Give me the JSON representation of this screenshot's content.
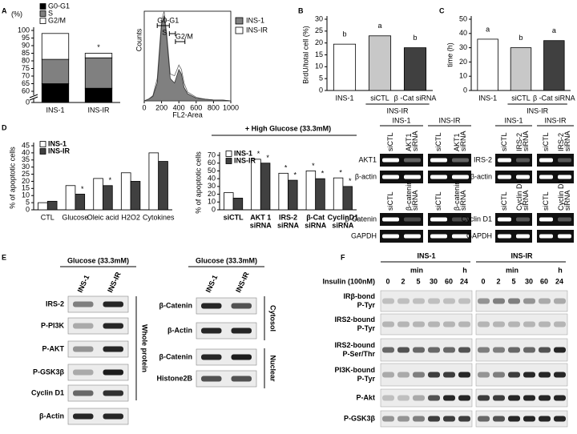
{
  "panel_labels": [
    "A",
    "B",
    "C",
    "D",
    "E",
    "F"
  ],
  "chart_data": [
    {
      "type": "bar",
      "stacked": true,
      "y_label": "(%)",
      "y_label_position": "top",
      "legend": "above",
      "categories": [
        "INS-1",
        "INS-IR"
      ],
      "series": [
        {
          "name": "G0-G1",
          "color": "#000000",
          "values": [
            65,
            62
          ]
        },
        {
          "name": "S",
          "color": "#808080",
          "values": [
            16,
            20
          ]
        },
        {
          "name": "G2/M",
          "color": "#ffffff",
          "values": [
            17,
            3
          ]
        }
      ],
      "markers": [
        null,
        "*"
      ],
      "ylim": [
        0,
        100
      ],
      "axis_break": [
        0,
        60
      ],
      "yticks": [
        0,
        60,
        65,
        70,
        75,
        80,
        85,
        90,
        95,
        100
      ]
    },
    {
      "type": "area",
      "x_label": "FL2-Area",
      "y_label": "Counts",
      "legend": "right",
      "xlim": [
        0,
        1000
      ],
      "xticks": [
        0,
        200,
        400,
        600,
        800,
        1000
      ],
      "ylim": [
        0,
        100
      ],
      "series": [
        {
          "name": "INS-1",
          "color": "#808080",
          "x": [
            0,
            50,
            100,
            150,
            200,
            230,
            260,
            300,
            350,
            400,
            430,
            460,
            500,
            600,
            700,
            800,
            900,
            1000
          ],
          "values": [
            0,
            2,
            5,
            20,
            85,
            95,
            70,
            25,
            20,
            35,
            30,
            15,
            8,
            3,
            2,
            1,
            1,
            0
          ]
        },
        {
          "name": "INS-IR",
          "color": "#ffffff",
          "x": [
            0,
            50,
            100,
            150,
            200,
            230,
            260,
            300,
            350,
            400,
            430,
            460,
            500,
            600,
            700,
            800,
            900,
            1000
          ],
          "values": [
            0,
            2,
            6,
            25,
            90,
            100,
            75,
            30,
            28,
            40,
            35,
            20,
            10,
            4,
            2,
            1,
            1,
            0
          ]
        }
      ],
      "gates": [
        {
          "label": "G0-G1",
          "range": [
            150,
            290
          ]
        },
        {
          "label": "S",
          "range": [
            290,
            360
          ]
        },
        {
          "label": "G2/M",
          "range": [
            360,
            470
          ]
        }
      ]
    },
    {
      "type": "bar",
      "y_label": "BrdU/total cell (%)",
      "categories": [
        "INS-1",
        "siCTL",
        "β -Cat siRNA"
      ],
      "values": [
        19.5,
        23,
        18
      ],
      "colors": [
        "#ffffff",
        "#c8c8c8",
        "#404040"
      ],
      "markers": [
        "b",
        "a",
        "b"
      ],
      "group_label": "INS-IR",
      "ylim": [
        0,
        30
      ],
      "yticks": [
        0,
        5,
        10,
        15,
        20,
        25,
        30
      ]
    },
    {
      "type": "bar",
      "y_label": "time (h)",
      "categories": [
        "INS-1",
        "siCTL",
        "β -Cat siRNA"
      ],
      "values": [
        36,
        30,
        35
      ],
      "colors": [
        "#ffffff",
        "#c8c8c8",
        "#404040"
      ],
      "markers": [
        "a",
        "b",
        "a"
      ],
      "group_label": "INS-IR",
      "ylim": [
        0,
        50
      ],
      "yticks": [
        0,
        10,
        20,
        30,
        40,
        50
      ]
    },
    {
      "type": "bar",
      "y_label": "% of apoptotic cells",
      "legend": "top-left",
      "categories": [
        "CTL",
        "Glucose",
        "Oleic acid",
        "H2O2",
        "Cytokines"
      ],
      "series": [
        {
          "name": "INS-1",
          "color": "#ffffff",
          "values": [
            5,
            17,
            22,
            26,
            40
          ],
          "markers": [
            null,
            null,
            null,
            null,
            null
          ]
        },
        {
          "name": "INS-IR",
          "color": "#404040",
          "values": [
            6,
            11,
            17,
            20,
            34
          ],
          "markers": [
            null,
            "*",
            "*",
            null,
            null
          ]
        }
      ],
      "ylim": [
        0,
        45
      ],
      "yticks": [
        0,
        5,
        10,
        15,
        20,
        25,
        30,
        35,
        40,
        45
      ]
    },
    {
      "type": "bar",
      "title": "+ High Glucose (33.3mM)",
      "y_label": "% of apoptotic cells",
      "legend": "top-left",
      "categories": [
        [
          "siCTL"
        ],
        [
          "AKT 1",
          "siRNA"
        ],
        [
          "IRS-2",
          "siRNA"
        ],
        [
          "β-Cat",
          "siRNA"
        ],
        [
          "CyclinD1",
          "siRNA"
        ]
      ],
      "series": [
        {
          "name": "INS-1",
          "color": "#ffffff",
          "values": [
            22,
            65,
            47,
            50,
            41
          ],
          "markers": [
            null,
            "*",
            "*",
            "*",
            "*"
          ]
        },
        {
          "name": "INS-IR",
          "color": "#404040",
          "values": [
            15,
            60,
            38,
            40,
            30
          ],
          "markers": [
            null,
            "*",
            "*",
            "*",
            "*"
          ]
        }
      ],
      "ylim": [
        0,
        70
      ],
      "yticks": [
        0,
        10,
        20,
        30,
        40,
        50,
        60,
        70
      ]
    }
  ],
  "panel_D_gels": [
    {
      "groups": [
        "INS-1",
        "INS-IR"
      ],
      "lanes": [
        [
          "siCTL"
        ],
        [
          "AKT1",
          "siRNA"
        ]
      ],
      "rows": [
        "AKT1",
        "β-actin"
      ]
    },
    {
      "groups": [
        "INS-1",
        "INS-IR"
      ],
      "lanes": [
        [
          "siCTL"
        ],
        [
          "IRS-2",
          "siRNA"
        ]
      ],
      "rows": [
        "IRS-2",
        "β-actin"
      ]
    },
    {
      "lanes": [
        [
          "siCTL"
        ],
        [
          "β-catenin",
          "siRNA"
        ]
      ],
      "rows": [
        "β-Catenin",
        "GAPDH"
      ]
    },
    {
      "lanes": [
        [
          "siCTL"
        ],
        [
          "Cyclin D1",
          "siRNA"
        ]
      ],
      "rows": [
        "Cyclin D1",
        "GAPDH"
      ]
    }
  ],
  "panel_E": [
    {
      "title": "Glucose (33.3mM)",
      "lanes": [
        "INS-1",
        "INS-IR"
      ],
      "rows": [
        "IRS-2",
        "P-PI3K",
        "P-AKT",
        "P-GSK3β",
        "Cyclin D1",
        "β-Actin"
      ],
      "fractions": [
        "Whole protein"
      ]
    },
    {
      "title": "Glucose (33.3mM)",
      "lanes": [
        "INS-1",
        "INS-IR"
      ],
      "rows": [
        "β-Catenin",
        "β-Actin",
        "β-Catenin",
        "Histone2B"
      ],
      "fractions": [
        "Cytosol",
        "Nuclear"
      ]
    }
  ],
  "panel_F": {
    "groups": [
      "INS-1",
      "INS-IR"
    ],
    "units": [
      "min",
      "h"
    ],
    "treatment": "Insulin (100nM)",
    "timepoints": [
      0,
      2,
      5,
      30,
      60,
      24
    ],
    "rows": [
      [
        "IRβ-bond",
        "P-Tyr"
      ],
      [
        "IRS2-bound",
        "P-Tyr"
      ],
      [
        "IRS2-bound",
        "P-Ser/Thr"
      ],
      [
        "PI3K-bound",
        "P-Tyr"
      ],
      [
        "P-Akt"
      ],
      [
        "P-GSK3β"
      ]
    ]
  }
}
